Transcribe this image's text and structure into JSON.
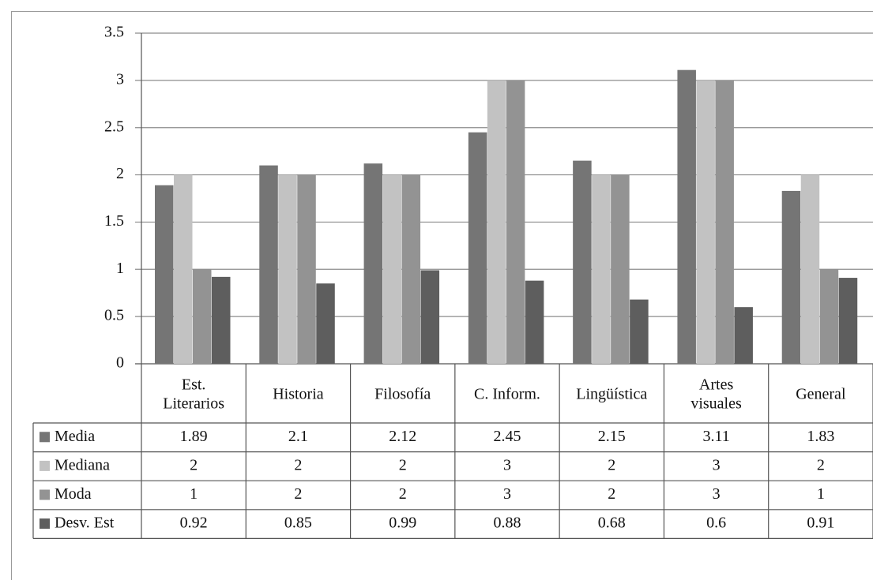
{
  "chart_data": {
    "type": "bar",
    "title": "",
    "xlabel": "",
    "ylabel": "",
    "ylim": [
      0,
      3.5
    ],
    "yticks": [
      "0",
      "0.5",
      "1",
      "1.5",
      "2",
      "2.5",
      "3",
      "3.5"
    ],
    "grid": true,
    "legend": "data-table-left",
    "categories": [
      [
        "Est.",
        "Literarios"
      ],
      [
        "Historia"
      ],
      [
        "Filosofía"
      ],
      [
        "C. Inform."
      ],
      [
        "Lingüística"
      ],
      [
        "Artes",
        "visuales"
      ],
      [
        "General"
      ]
    ],
    "series": [
      {
        "name": "Media",
        "color": "#757575",
        "values": [
          1.89,
          2.1,
          2.12,
          2.45,
          2.15,
          3.11,
          1.83
        ],
        "labels": [
          "1.89",
          "2.1",
          "2.12",
          "2.45",
          "2.15",
          "3.11",
          "1.83"
        ]
      },
      {
        "name": "Mediana",
        "color": "#c2c2c2",
        "values": [
          2,
          2,
          2,
          3,
          2,
          3,
          2
        ],
        "labels": [
          "2",
          "2",
          "2",
          "3",
          "2",
          "3",
          "2"
        ]
      },
      {
        "name": "Moda",
        "color": "#939393",
        "values": [
          1,
          2,
          2,
          3,
          2,
          3,
          1
        ],
        "labels": [
          "1",
          "2",
          "2",
          "3",
          "2",
          "3",
          "1"
        ]
      },
      {
        "name": "Desv. Est",
        "color": "#5e5e5e",
        "values": [
          0.92,
          0.85,
          0.99,
          0.88,
          0.68,
          0.6,
          0.91
        ],
        "labels": [
          "0.92",
          "0.85",
          "0.99",
          "0.88",
          "0.68",
          "0.6",
          "0.91"
        ]
      }
    ]
  }
}
